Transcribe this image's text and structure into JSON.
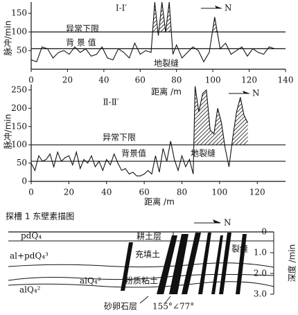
{
  "chart_data": [
    {
      "type": "line",
      "title": "Ⅰ-Ⅰ′",
      "north": "N",
      "y_label": "脉冲/min",
      "x_label": "距离 /m",
      "x": [
        0,
        3,
        6,
        9,
        12,
        15,
        18,
        21,
        24,
        27,
        30,
        33,
        36,
        39,
        42,
        45,
        48,
        51,
        54,
        57,
        60,
        63,
        66,
        68,
        70,
        72,
        74,
        76,
        78,
        80,
        83,
        86,
        89,
        92,
        95,
        98,
        101,
        104,
        107,
        110,
        113,
        116,
        119,
        122,
        125,
        128,
        131,
        134
      ],
      "values": [
        25,
        20,
        60,
        55,
        30,
        45,
        50,
        40,
        60,
        45,
        55,
        35,
        40,
        60,
        30,
        25,
        55,
        45,
        30,
        70,
        40,
        50,
        45,
        180,
        90,
        180,
        100,
        180,
        40,
        65,
        30,
        45,
        60,
        50,
        20,
        45,
        140,
        55,
        70,
        40,
        50,
        60,
        35,
        55,
        45,
        40,
        60,
        55
      ],
      "color": "#111111",
      "xlim": [
        0,
        140
      ],
      "xticks": [
        0,
        20,
        40,
        60,
        80,
        100,
        120,
        140
      ],
      "ylim": [
        0,
        180
      ],
      "yticks": [
        50,
        100,
        150
      ],
      "reference_lines": [
        {
          "label": "异常下限",
          "value": 100
        },
        {
          "label": "背 景 值",
          "value": 55
        }
      ],
      "crack_label": "地裂缝"
    },
    {
      "type": "line",
      "title": "Ⅱ-Ⅱ′",
      "north": "N",
      "y_label": "脉冲/min",
      "x_label": "距离 /m",
      "x": [
        0,
        2,
        4,
        6,
        8,
        10,
        12,
        14,
        16,
        18,
        20,
        22,
        24,
        26,
        28,
        30,
        32,
        34,
        36,
        38,
        40,
        42,
        44,
        46,
        48,
        50,
        52,
        54,
        56,
        58,
        60,
        62,
        64,
        66,
        68,
        70,
        72,
        74,
        76,
        78,
        80,
        82,
        84,
        86,
        87,
        89,
        91,
        93,
        95,
        97,
        99,
        101,
        103,
        105,
        107,
        109,
        111,
        113,
        115
      ],
      "values": [
        50,
        30,
        70,
        55,
        60,
        75,
        40,
        80,
        55,
        65,
        70,
        45,
        80,
        35,
        60,
        50,
        70,
        40,
        55,
        30,
        60,
        45,
        75,
        50,
        30,
        35,
        20,
        25,
        15,
        15,
        20,
        30,
        20,
        70,
        25,
        90,
        55,
        110,
        60,
        30,
        70,
        40,
        60,
        20,
        260,
        190,
        240,
        250,
        140,
        130,
        200,
        160,
        90,
        40,
        120,
        190,
        230,
        180,
        160
      ],
      "color": "#111111",
      "xlim": [
        0,
        135
      ],
      "xticks": [
        0,
        20,
        40,
        60,
        80,
        100,
        120
      ],
      "ylim": [
        0,
        265
      ],
      "yticks": [
        0,
        50,
        100,
        150,
        200,
        250
      ],
      "reference_lines": [
        {
          "label": "异常下限",
          "value": 100
        },
        {
          "label": "背景值",
          "value": 55
        }
      ],
      "crack_label": "地裂缝"
    }
  ],
  "sketch": {
    "title": "探槽 1 东壁素描图",
    "north": "N",
    "layers": [
      "pdQ₄",
      "al+pdQ₄³",
      "alQ₄³",
      "alQ₄²"
    ],
    "labels": {
      "topsoil": "耕土层",
      "fill": "充填土",
      "clay": "粉质粘土",
      "crack": "裂缝",
      "gravel": "砂卵石层",
      "attitude": "155°∠77°"
    },
    "depth_label": "深度 /min",
    "depth_lim": [
      0,
      3
    ],
    "depth_ticks": [
      0,
      {
        "value": 1,
        "label": "1.0"
      },
      {
        "value": 2,
        "label": "2.0"
      },
      {
        "value": 3,
        "label": "3.0"
      }
    ]
  }
}
